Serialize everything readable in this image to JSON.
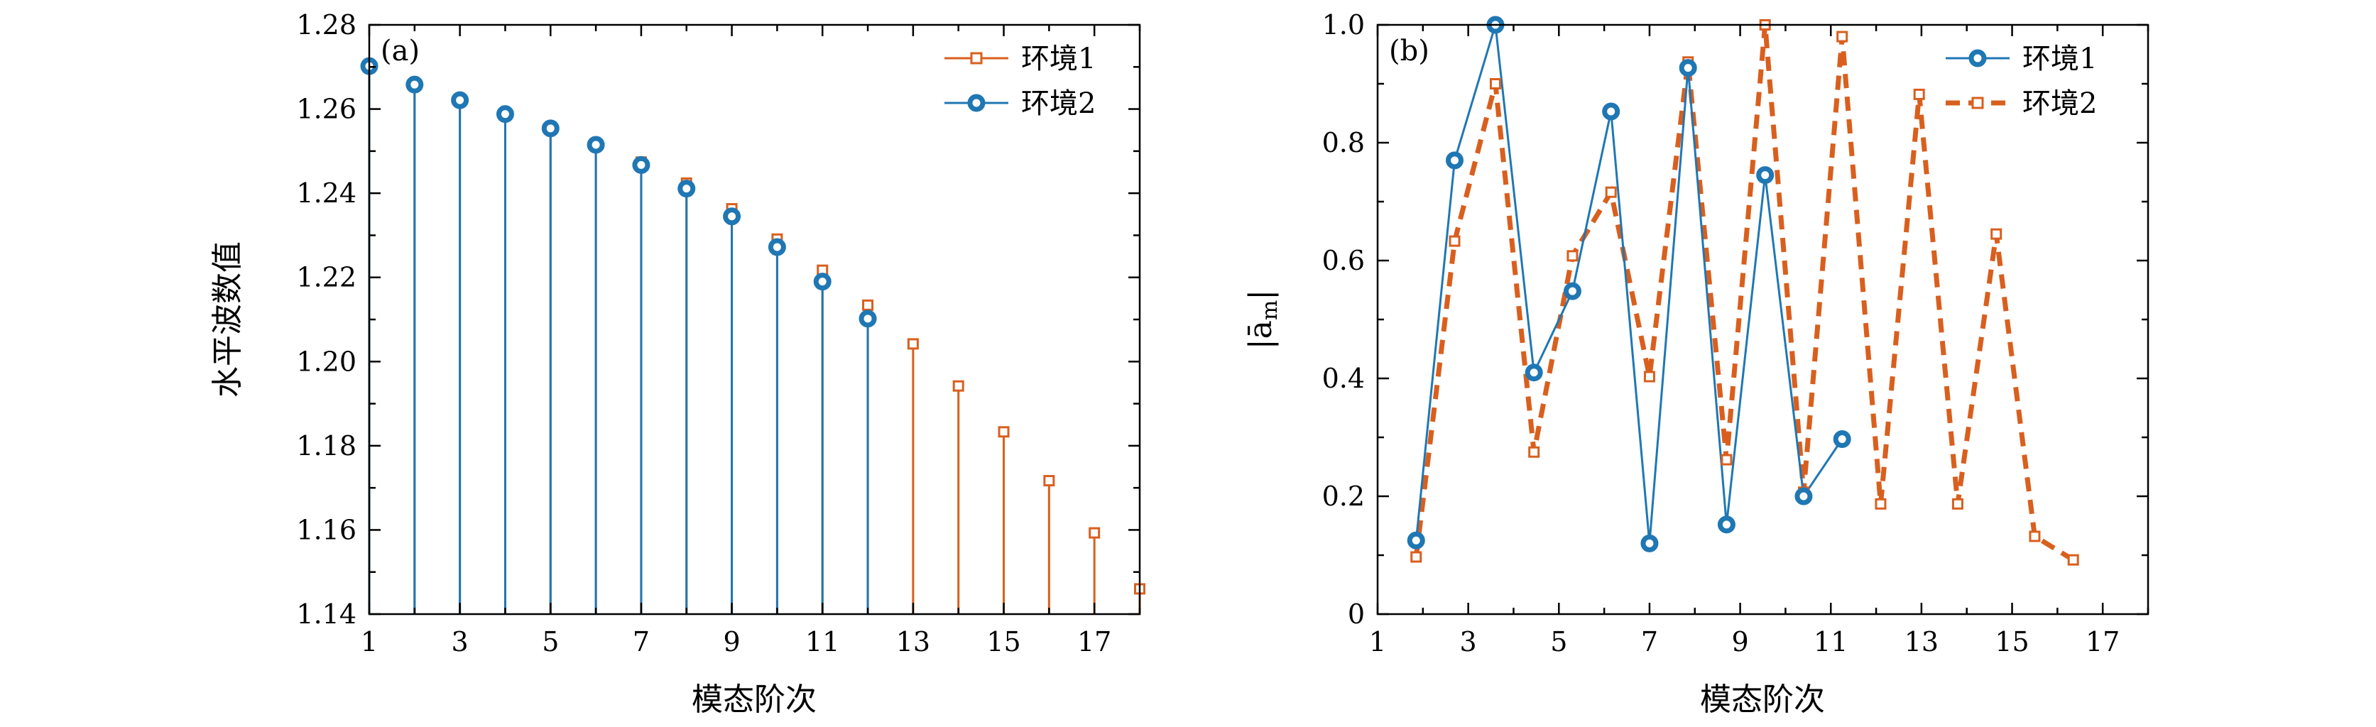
{
  "colors": {
    "env1": "#d95f1e",
    "env2": "#1f77b4",
    "axis": "#000000"
  },
  "chart_data": [
    {
      "type": "stem",
      "panel_label": "(a)",
      "xlabel": "模态阶次",
      "ylabel": "水平波数值",
      "xlim": [
        1,
        18
      ],
      "ylim": [
        1.14,
        1.28
      ],
      "xticks": [
        1,
        3,
        5,
        7,
        9,
        11,
        13,
        15,
        17
      ],
      "yticks": [
        1.14,
        1.16,
        1.18,
        1.2,
        1.22,
        1.24,
        1.26,
        1.28
      ],
      "legend_position": "top-right",
      "series": [
        {
          "name": "环境1",
          "color": "#d95f1e",
          "marker": "square",
          "x": [
            1,
            2,
            3,
            4,
            5,
            6,
            7,
            8,
            9,
            10,
            11,
            12,
            13,
            14,
            15,
            16,
            17,
            18
          ],
          "y": [
            1.2702,
            1.2661,
            1.2623,
            1.259,
            1.2557,
            1.2518,
            1.2474,
            1.2424,
            1.2363,
            1.2291,
            1.2217,
            1.2134,
            1.2042,
            1.1942,
            1.1833,
            1.1717,
            1.1593,
            1.146
          ]
        },
        {
          "name": "环境2",
          "color": "#1f77b4",
          "marker": "circle",
          "x": [
            1,
            2,
            3,
            4,
            5,
            6,
            7,
            8,
            9,
            10,
            11,
            12
          ],
          "y": [
            1.2702,
            1.2658,
            1.2621,
            1.2588,
            1.2554,
            1.2515,
            1.2467,
            1.2411,
            1.2345,
            1.2272,
            1.219,
            1.2102
          ]
        }
      ]
    },
    {
      "type": "line",
      "panel_label": "(b)",
      "xlabel": "模态阶次",
      "ylabel": "|ā_m|",
      "ylabel_main": "|ā",
      "ylabel_sub": "m",
      "ylabel_close": "|",
      "xlim": [
        1,
        18
      ],
      "ylim": [
        0,
        1
      ],
      "xticks": [
        1,
        3,
        5,
        7,
        9,
        11,
        13,
        15,
        17
      ],
      "yticks": [
        0,
        0.2,
        0.4,
        0.6,
        0.8,
        1.0
      ],
      "ytick_labels": [
        "0",
        "0.2",
        "0.4",
        "0.6",
        "0.8",
        "1.0"
      ],
      "legend_position": "top-right",
      "series": [
        {
          "name": "环境1",
          "color": "#1f77b4",
          "marker": "circle",
          "linestyle": "solid",
          "x": [
            1.85,
            2.7,
            3.6,
            4.45,
            5.3,
            6.15,
            7.0,
            7.85,
            8.7,
            9.55,
            10.4,
            11.25
          ],
          "y": [
            0.125,
            0.77,
            1.0,
            0.41,
            0.548,
            0.853,
            0.12,
            0.927,
            0.152,
            0.745,
            0.2,
            0.297
          ]
        },
        {
          "name": "环境2",
          "color": "#d95f1e",
          "marker": "square",
          "linestyle": "dashed",
          "x": [
            1.85,
            2.7,
            3.6,
            4.45,
            5.3,
            6.15,
            7.0,
            7.85,
            8.7,
            9.55,
            10.4,
            11.25,
            12.1,
            12.95,
            13.8,
            14.65,
            15.5,
            16.35
          ],
          "y": [
            0.097,
            0.633,
            0.9,
            0.275,
            0.608,
            0.716,
            0.403,
            0.937,
            0.262,
            1.0,
            0.207,
            0.98,
            0.187,
            0.882,
            0.187,
            0.645,
            0.132,
            0.092
          ]
        }
      ]
    }
  ]
}
